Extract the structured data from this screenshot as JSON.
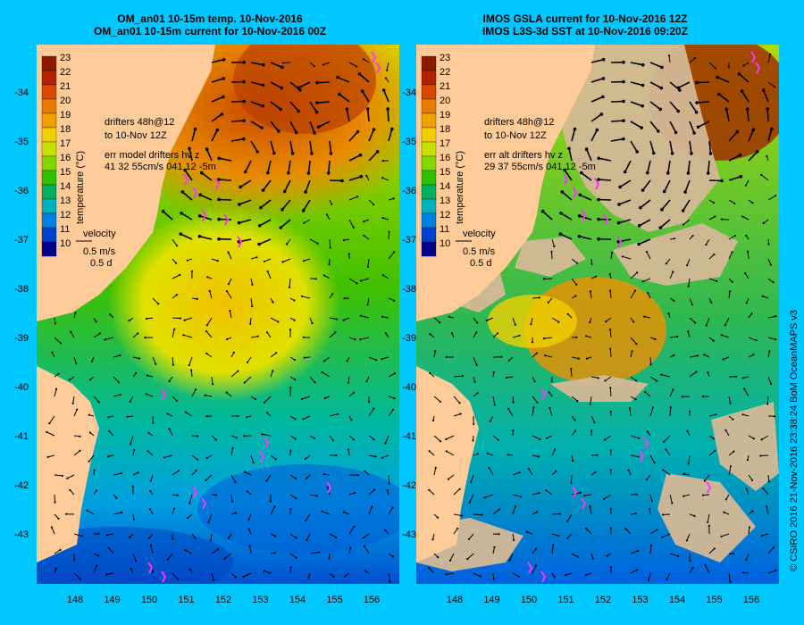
{
  "colors": {
    "background": "#00c8ff",
    "land": "#ffcc99",
    "cloud_mask": "#d4b896",
    "drifter": "#ff33ff",
    "vector": "#000000"
  },
  "left_panel": {
    "title_line1": "OM_an01 10-15m temp. 10-Nov-2016",
    "title_line2": "OM_an01 10-15m current for 10-Nov-2016 00Z",
    "drifters_label1": "drifters 48h@12",
    "drifters_label2": "to 10-Nov 12Z",
    "err_label1": "err model drifters hv z",
    "err_label2": "41 32 55cm/s 041 12 -5m"
  },
  "right_panel": {
    "title_line1": "IMOS GSLA current for 10-Nov-2016 12Z",
    "title_line2": "IMOS L3S-3d SST at 10-Nov-2016 09:20Z",
    "drifters_label1": "drifters 48h@12",
    "drifters_label2": "to 10-Nov 12Z",
    "err_label1": "err alt drifters hv z",
    "err_label2": "29 37 55cm/s 041 12 -5m"
  },
  "colorbar": {
    "label": "temperature (°C)",
    "ticks": [
      "23",
      "22",
      "21",
      "20",
      "19",
      "18",
      "17",
      "16",
      "15",
      "14",
      "13",
      "12",
      "11",
      "10"
    ],
    "colors": [
      "#8b1a00",
      "#b22200",
      "#d84a00",
      "#e87a00",
      "#f0a000",
      "#f0d000",
      "#c8e000",
      "#80d800",
      "#30c000",
      "#00b060",
      "#00b0c0",
      "#0080e0",
      "#0040d0",
      "#00008b"
    ]
  },
  "velocity_legend": {
    "title": "velocity",
    "speed": "0.5 m/s",
    "time": "0.5 d"
  },
  "axes": {
    "lat_ticks": [
      "-34",
      "-35",
      "-36",
      "-37",
      "-38",
      "-39",
      "-40",
      "-41",
      "-42",
      "-43"
    ],
    "lon_ticks": [
      "148",
      "149",
      "150",
      "151",
      "152",
      "153",
      "154",
      "155",
      "156"
    ]
  },
  "credit": "© CSIRO 2016   21-Nov-2016 23:38:24 BoM OceanMAPS v3"
}
